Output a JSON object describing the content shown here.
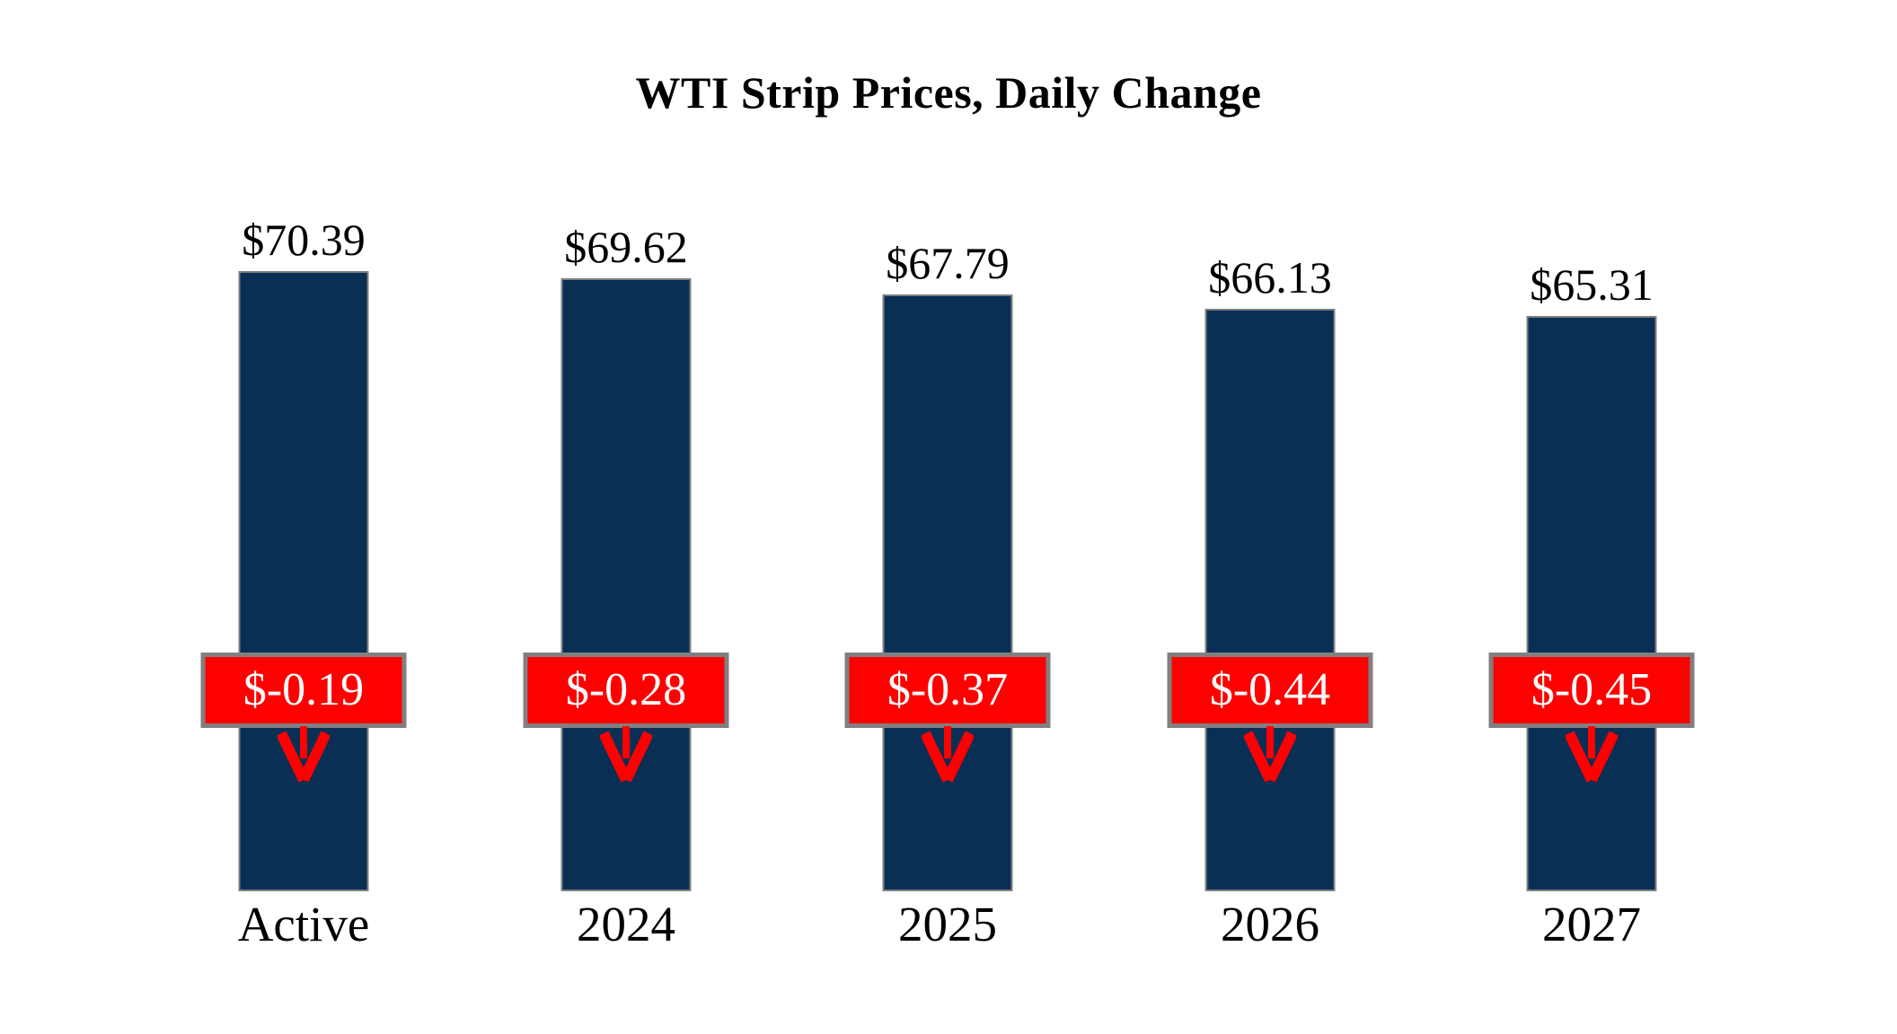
{
  "title": "WTI Strip Prices, Daily Change",
  "chart_data": {
    "type": "bar",
    "title": "WTI Strip Prices, Daily Change",
    "categories": [
      "Active",
      "2024",
      "2025",
      "2026",
      "2027"
    ],
    "series": [
      {
        "name": "WTI Strip Price",
        "values": [
          70.39,
          69.62,
          67.79,
          66.13,
          65.31
        ],
        "labels": [
          "$70.39",
          "$69.62",
          "$67.79",
          "$66.13",
          "$65.31"
        ]
      },
      {
        "name": "Daily Change",
        "values": [
          -0.19,
          -0.28,
          -0.37,
          -0.44,
          -0.45
        ],
        "labels": [
          "$-0.19",
          "$-0.28",
          "$-0.37",
          "$-0.44",
          "$-0.45"
        ]
      }
    ],
    "ylim": [
      0,
      70.39
    ],
    "xlabel": "",
    "ylabel": "",
    "grid": "off",
    "legend": "none",
    "annotations": "red boxes with daily change values and red down arrows overlaid on each bar",
    "colors": {
      "bar": "#0A2F55",
      "bar_border": "#808080",
      "change_box": "#FF0000",
      "change_box_border": "#808080",
      "change_text": "#FFFFFF",
      "label_text": "#000000",
      "arrow": "#FF0000",
      "background": "#FFFFFF"
    }
  }
}
